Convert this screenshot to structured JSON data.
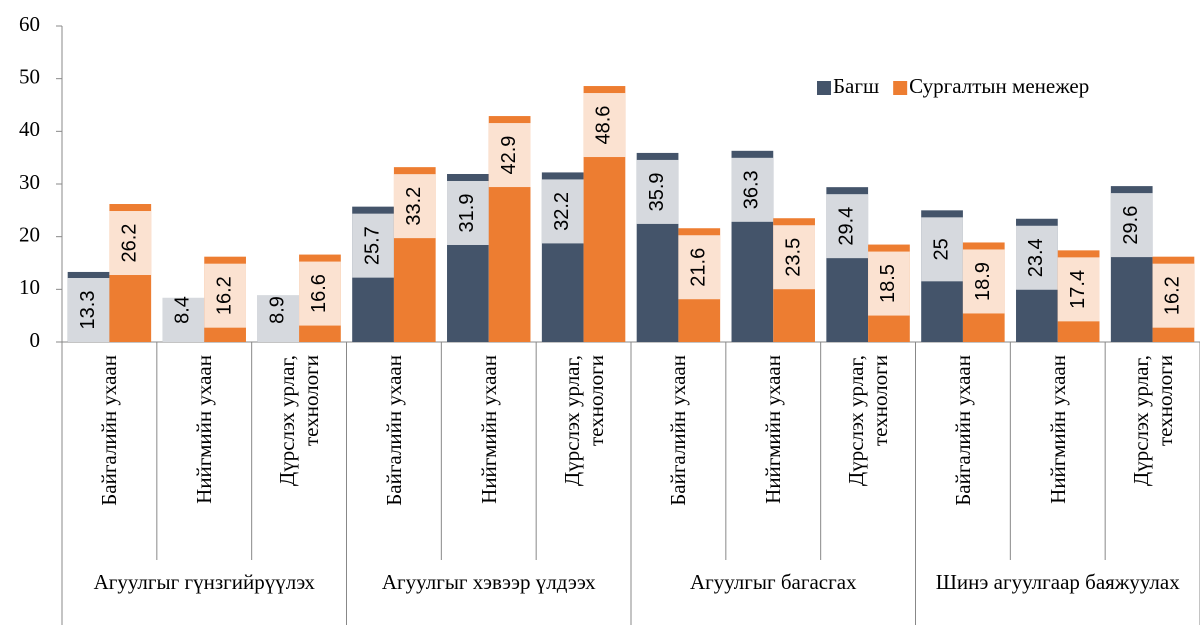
{
  "chart_data": {
    "type": "bar",
    "categories": [
      "Байгалийн ухаан",
      "Нийгмийн ухаан",
      "Дүрслэх урлаг, технологи",
      "Байгалийн ухаан",
      "Нийгмийн ухаан",
      "Дүрслэх урлаг, технологи",
      "Байгалийн ухаан",
      "Нийгмийн ухаан",
      "Дүрслэх урлаг, технологи",
      "Байгалийн ухаан",
      "Нийгмийн ухаан",
      "Дүрслэх урлаг, технологи"
    ],
    "category_groups": [
      "Агуулгыг гүнзгийрүүлэх",
      "Агуулгыг хэвээр үлдээх",
      "Агуулгыг багасгах",
      "Шинэ агуулгаар баяжуулах"
    ],
    "series": [
      {
        "name": "Багш",
        "color": "#44546a",
        "values": [
          13.3,
          8.4,
          8.9,
          25.7,
          31.9,
          32.2,
          35.9,
          36.3,
          29.4,
          25,
          23.4,
          29.6
        ]
      },
      {
        "name": "Сургалтын менежер",
        "color": "#ed7d31",
        "values": [
          26.2,
          16.2,
          16.6,
          33.2,
          42.9,
          48.6,
          21.6,
          23.5,
          18.5,
          18.9,
          17.4,
          16.2
        ]
      }
    ],
    "ylim": [
      0,
      60
    ],
    "yticks": [
      0,
      10,
      20,
      30,
      40,
      50,
      60
    ],
    "legend": "top-right"
  }
}
